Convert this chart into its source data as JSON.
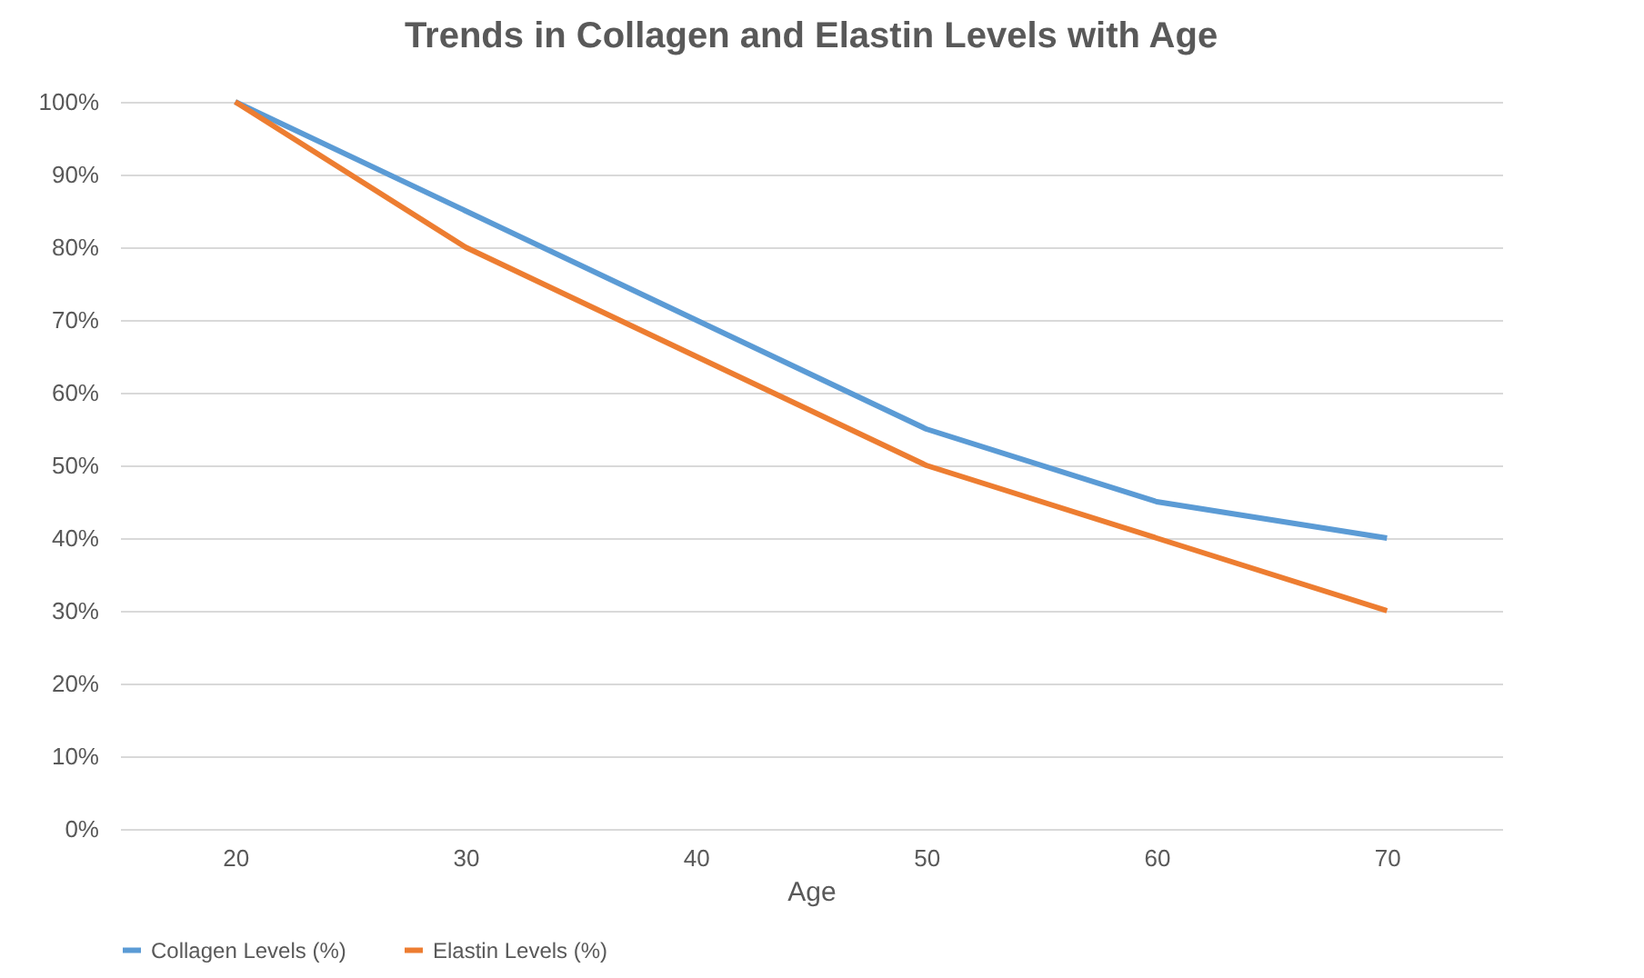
{
  "chart_data": {
    "type": "line",
    "title": "Trends in Collagen and Elastin Levels with Age",
    "xlabel": "Age",
    "categories": [
      "20",
      "30",
      "40",
      "50",
      "60",
      "70"
    ],
    "series": [
      {
        "name": "Collagen Levels (%)",
        "color": "#5b9bd5",
        "values": [
          100,
          85,
          70,
          55,
          45,
          40
        ]
      },
      {
        "name": "Elastin Levels (%)",
        "color": "#ed7d31",
        "values": [
          100,
          80,
          65,
          50,
          40,
          30
        ]
      }
    ],
    "ylim": [
      0,
      100
    ],
    "yticks": [
      {
        "value": 0,
        "label": "0%"
      },
      {
        "value": 10,
        "label": "10%"
      },
      {
        "value": 20,
        "label": "20%"
      },
      {
        "value": 30,
        "label": "30%"
      },
      {
        "value": 40,
        "label": "40%"
      },
      {
        "value": 50,
        "label": "50%"
      },
      {
        "value": 60,
        "label": "60%"
      },
      {
        "value": 70,
        "label": "70%"
      },
      {
        "value": 80,
        "label": "80%"
      },
      {
        "value": 90,
        "label": "90%"
      },
      {
        "value": 100,
        "label": "100%"
      }
    ],
    "grid": "y",
    "legend": "bottom",
    "marker": "none",
    "line_style": "solid"
  }
}
